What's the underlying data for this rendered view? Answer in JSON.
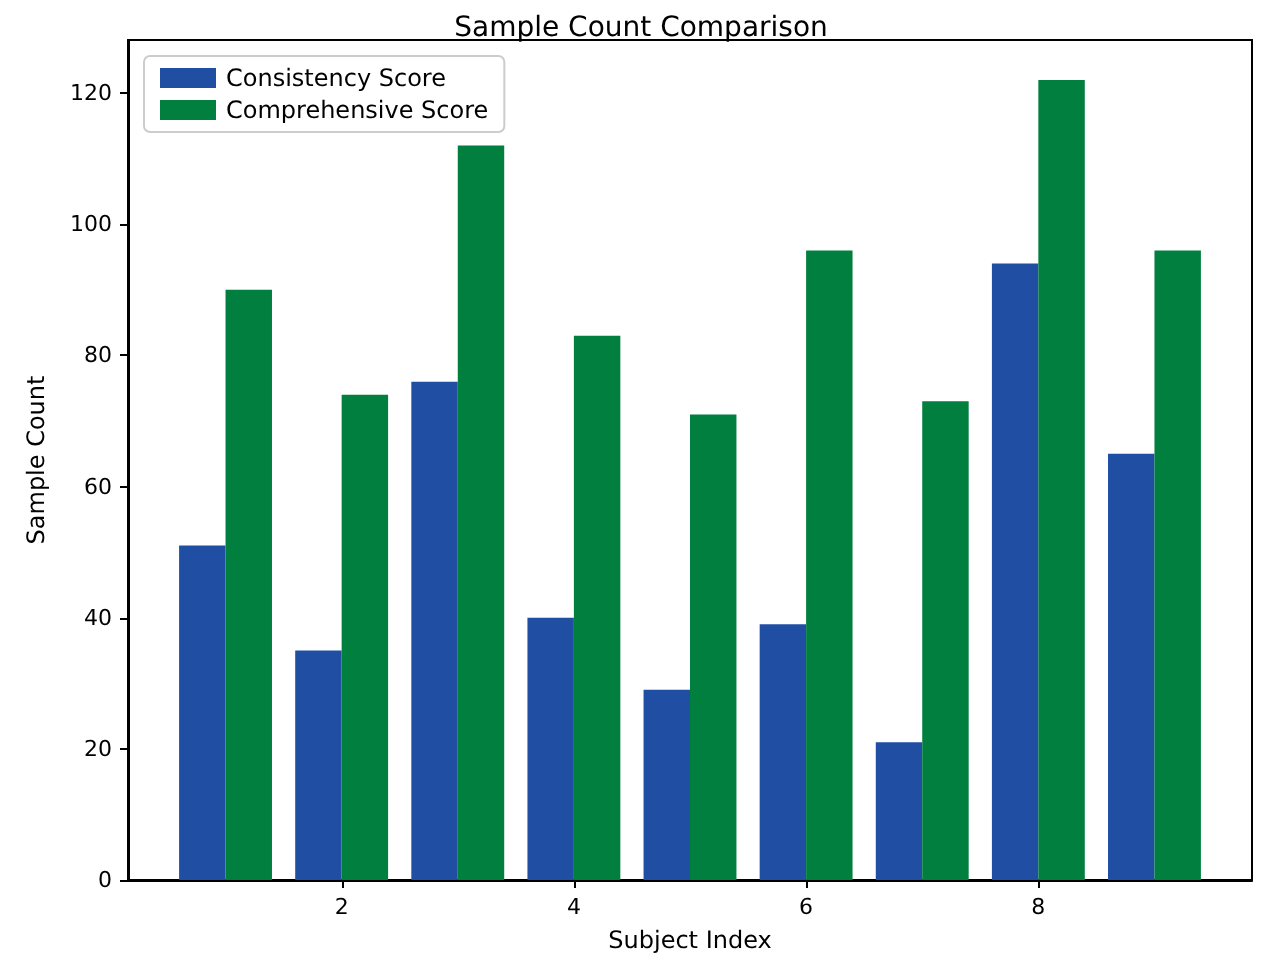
{
  "chart_data": {
    "type": "bar",
    "title": "Sample Count Comparison",
    "xlabel": "Subject Index",
    "ylabel": "Sample Count",
    "x": [
      1,
      2,
      3,
      4,
      5,
      6,
      7,
      8,
      9
    ],
    "series": [
      {
        "name": "Consistency Score",
        "color": "#1f4ea3",
        "values": [
          51,
          35,
          76,
          40,
          29,
          39,
          21,
          94,
          65
        ]
      },
      {
        "name": "Comprehensive Score",
        "color": "#007f3f",
        "values": [
          90,
          74,
          112,
          83,
          71,
          96,
          73,
          122,
          96
        ]
      }
    ],
    "xlim": [
      0.16,
      9.84
    ],
    "xticks": [
      2,
      4,
      6,
      8
    ],
    "ylim": [
      0,
      128.1
    ],
    "yticks": [
      0,
      20,
      40,
      60,
      80,
      100,
      120
    ],
    "grid": false,
    "legend": "top left"
  }
}
